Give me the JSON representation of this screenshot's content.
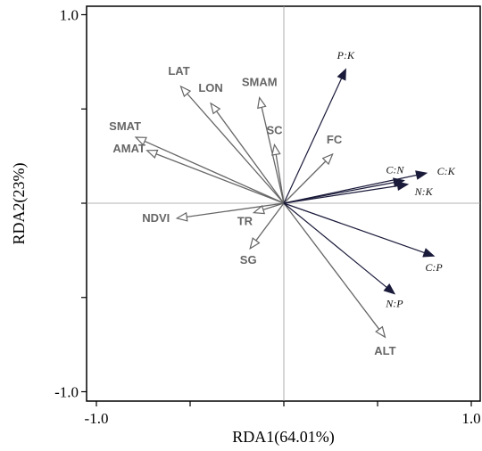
{
  "chart_data": {
    "type": "scatter",
    "subtype": "rda-biplot",
    "title": "",
    "xlabel": "RDA1(64.01%)",
    "ylabel": "RDA2(23%)",
    "xlim": [
      -1.0,
      1.0
    ],
    "ylim": [
      -1.0,
      1.0
    ],
    "x_tick_labels": [
      "-1.0",
      "1.0"
    ],
    "y_tick_labels": [
      "1.0",
      "-1.0"
    ],
    "grid": false,
    "zero_lines": true,
    "series": [
      {
        "name": "",
        "role": "environmental-factors",
        "color": "#666666",
        "arrow_style": "open",
        "vectors": [
          {
            "label": "LAT",
            "x": -0.55,
            "y": 0.62
          },
          {
            "label": "LON",
            "x": -0.39,
            "y": 0.53
          },
          {
            "label": "SMAM",
            "x": -0.13,
            "y": 0.56
          },
          {
            "label": "SC",
            "x": -0.05,
            "y": 0.31
          },
          {
            "label": "FC",
            "x": 0.26,
            "y": 0.26
          },
          {
            "label": "SMAT",
            "x": -0.79,
            "y": 0.35
          },
          {
            "label": "AMAT",
            "x": -0.73,
            "y": 0.28
          },
          {
            "label": "NDVI",
            "x": -0.57,
            "y": -0.08
          },
          {
            "label": "TR",
            "x": -0.16,
            "y": -0.05
          },
          {
            "label": "SG",
            "x": -0.18,
            "y": -0.24
          },
          {
            "label": "ALT",
            "x": 0.54,
            "y": -0.71
          }
        ]
      },
      {
        "name": "",
        "role": "stoichiometry",
        "color": "#1a1a3a",
        "arrow_style": "filled",
        "vectors": [
          {
            "label": "P:K",
            "x": 0.33,
            "y": 0.71
          },
          {
            "label": "C:N",
            "x": 0.64,
            "y": 0.12
          },
          {
            "label": "C:K",
            "x": 0.76,
            "y": 0.16
          },
          {
            "label": "N:K",
            "x": 0.66,
            "y": 0.1
          },
          {
            "label": "C:P",
            "x": 0.8,
            "y": -0.28
          },
          {
            "label": "N:P",
            "x": 0.59,
            "y": -0.48
          }
        ]
      }
    ]
  }
}
